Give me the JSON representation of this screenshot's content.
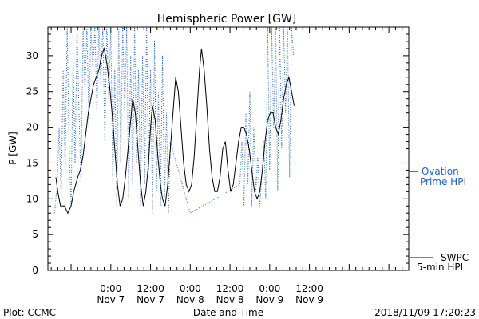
{
  "chart_data": {
    "type": "line",
    "title": "Hemispheric Power [GW]",
    "xlabel": "Date and Time",
    "ylabel": "P [GW]",
    "ylim": [
      0,
      34
    ],
    "yticks": [
      0,
      5,
      10,
      15,
      20,
      25,
      30
    ],
    "xlim_hours": [
      -9.5,
      45
    ],
    "xticks": [
      {
        "hour": 0,
        "line1": "0:00",
        "line2": "Nov 7"
      },
      {
        "hour": 6,
        "line1": "12:00",
        "line2": "Nov 7"
      },
      {
        "hour": 12,
        "line1": "0:00",
        "line2": "Nov 8"
      },
      {
        "hour": 18,
        "line1": "12:00",
        "line2": "Nov 8"
      },
      {
        "hour": 24,
        "line1": "0:00",
        "line2": "Nov 9"
      },
      {
        "hour": 30,
        "line1": "12:00",
        "line2": "Nov 9"
      }
    ],
    "grid": false,
    "series": [
      {
        "name": "SWPC 5-min HPI",
        "legend_line1": "SWPC",
        "legend_line2": "5-min HPI",
        "style": "solid",
        "color": "#000000",
        "points": [
          [
            -8.3,
            13
          ],
          [
            -8.0,
            11
          ],
          [
            -7.6,
            9
          ],
          [
            -7.0,
            9
          ],
          [
            -6.5,
            8
          ],
          [
            -6.0,
            9
          ],
          [
            -5.6,
            11
          ],
          [
            -5.3,
            12
          ],
          [
            -5.0,
            13
          ],
          [
            -4.6,
            14
          ],
          [
            -4.2,
            16
          ],
          [
            -3.8,
            19
          ],
          [
            -3.4,
            22
          ],
          [
            -3.0,
            24
          ],
          [
            -2.6,
            26
          ],
          [
            -2.2,
            27
          ],
          [
            -1.8,
            28
          ],
          [
            -1.4,
            30
          ],
          [
            -1.0,
            31
          ],
          [
            -0.6,
            29
          ],
          [
            -0.2,
            26
          ],
          [
            0.2,
            22
          ],
          [
            0.6,
            17
          ],
          [
            1.0,
            12
          ],
          [
            1.4,
            9
          ],
          [
            1.8,
            10
          ],
          [
            2.2,
            13
          ],
          [
            2.6,
            17
          ],
          [
            3.0,
            21
          ],
          [
            3.3,
            24
          ],
          [
            3.7,
            22
          ],
          [
            4.1,
            17
          ],
          [
            4.5,
            12
          ],
          [
            4.9,
            9
          ],
          [
            5.3,
            11
          ],
          [
            5.7,
            15
          ],
          [
            6.0,
            20
          ],
          [
            6.3,
            23
          ],
          [
            6.7,
            21
          ],
          [
            7.1,
            16
          ],
          [
            7.5,
            12
          ],
          [
            7.8,
            10
          ],
          [
            8.2,
            9
          ],
          [
            8.6,
            12
          ],
          [
            9.0,
            17
          ],
          [
            9.4,
            22
          ],
          [
            9.8,
            27
          ],
          [
            10.2,
            25
          ],
          [
            10.6,
            20
          ],
          [
            11.0,
            15
          ],
          [
            11.4,
            12
          ],
          [
            11.8,
            11
          ],
          [
            12.2,
            12
          ],
          [
            12.6,
            16
          ],
          [
            13.0,
            22
          ],
          [
            13.4,
            28
          ],
          [
            13.7,
            31
          ],
          [
            14.1,
            28
          ],
          [
            14.5,
            23
          ],
          [
            14.9,
            17
          ],
          [
            15.3,
            13
          ],
          [
            15.7,
            11
          ],
          [
            16.1,
            11
          ],
          [
            16.5,
            13
          ],
          [
            16.9,
            17
          ],
          [
            17.3,
            18
          ],
          [
            17.7,
            14
          ],
          [
            18.1,
            11
          ],
          [
            18.5,
            12
          ],
          [
            18.9,
            15
          ],
          [
            19.3,
            18
          ],
          [
            19.7,
            20
          ],
          [
            20.1,
            20
          ],
          [
            20.5,
            19
          ],
          [
            20.9,
            17
          ],
          [
            21.3,
            14
          ],
          [
            21.7,
            11
          ],
          [
            22.1,
            10
          ],
          [
            22.5,
            11
          ],
          [
            22.9,
            14
          ],
          [
            23.3,
            18
          ],
          [
            23.7,
            21
          ],
          [
            24.1,
            22
          ],
          [
            24.5,
            22
          ],
          [
            24.9,
            20
          ],
          [
            25.3,
            19
          ],
          [
            25.7,
            21
          ],
          [
            26.1,
            24
          ],
          [
            26.5,
            26
          ],
          [
            26.9,
            27
          ],
          [
            27.3,
            25
          ],
          [
            27.7,
            23
          ]
        ]
      },
      {
        "name": "Ovation Prime HPI",
        "legend_line1": "— Ovation",
        "legend_line2": "Prime HPI",
        "style": "dotted",
        "color": "#1e64c8",
        "points": [
          [
            -8.5,
            8
          ],
          [
            -8.1,
            12
          ],
          [
            -7.8,
            20
          ],
          [
            -7.5,
            10
          ],
          [
            -7.2,
            28
          ],
          [
            -6.9,
            14
          ],
          [
            -6.6,
            34
          ],
          [
            -6.3,
            18
          ],
          [
            -6.0,
            9
          ],
          [
            -5.7,
            30
          ],
          [
            -5.4,
            15
          ],
          [
            -5.1,
            34
          ],
          [
            -4.8,
            22
          ],
          [
            -4.5,
            12
          ],
          [
            -4.2,
            34
          ],
          [
            -3.9,
            25
          ],
          [
            -3.6,
            34
          ],
          [
            -3.3,
            20
          ],
          [
            -3.0,
            34
          ],
          [
            -2.7,
            28
          ],
          [
            -2.4,
            34
          ],
          [
            -2.1,
            22
          ],
          [
            -1.8,
            34
          ],
          [
            -1.5,
            26
          ],
          [
            -1.2,
            34
          ],
          [
            -0.9,
            18
          ],
          [
            -0.6,
            34
          ],
          [
            -0.3,
            24
          ],
          [
            0.0,
            34
          ],
          [
            0.3,
            12
          ],
          [
            0.6,
            28
          ],
          [
            0.9,
            9
          ],
          [
            1.2,
            34
          ],
          [
            1.5,
            15
          ],
          [
            1.8,
            34
          ],
          [
            2.1,
            22
          ],
          [
            2.4,
            34
          ],
          [
            2.7,
            10
          ],
          [
            3.0,
            30
          ],
          [
            3.3,
            12
          ],
          [
            3.6,
            34
          ],
          [
            3.9,
            15
          ],
          [
            4.2,
            28
          ],
          [
            4.5,
            9
          ],
          [
            4.8,
            30
          ],
          [
            5.1,
            12
          ],
          [
            5.4,
            34
          ],
          [
            5.7,
            14
          ],
          [
            6.0,
            28
          ],
          [
            6.3,
            8
          ],
          [
            6.6,
            32
          ],
          [
            6.9,
            11
          ],
          [
            7.2,
            25
          ],
          [
            7.5,
            9
          ],
          [
            7.8,
            30
          ],
          [
            8.1,
            10
          ],
          [
            8.4,
            22
          ],
          [
            8.7,
            8
          ],
          [
            9.0,
            18
          ],
          [
            12.0,
            8
          ],
          [
            19.5,
            12
          ],
          [
            19.8,
            18
          ],
          [
            20.1,
            9
          ],
          [
            20.4,
            22
          ],
          [
            20.7,
            12
          ],
          [
            21.0,
            25
          ],
          [
            21.3,
            9
          ],
          [
            21.6,
            20
          ],
          [
            21.9,
            11
          ],
          [
            22.2,
            16
          ],
          [
            22.5,
            9
          ],
          [
            22.8,
            13
          ],
          [
            23.1,
            18
          ],
          [
            23.4,
            10
          ],
          [
            23.7,
            34
          ],
          [
            24.0,
            14
          ],
          [
            24.3,
            34
          ],
          [
            24.6,
            20
          ],
          [
            24.9,
            34
          ],
          [
            25.2,
            11
          ],
          [
            25.5,
            34
          ],
          [
            25.8,
            17
          ],
          [
            26.1,
            34
          ],
          [
            26.4,
            22
          ],
          [
            26.7,
            34
          ],
          [
            27.0,
            13
          ],
          [
            27.3,
            34
          ],
          [
            27.6,
            30
          ]
        ]
      }
    ]
  },
  "footer": {
    "left": "Plot: CCMC",
    "center": "Date and Time",
    "right": "2018/11/09 17:20:23"
  }
}
